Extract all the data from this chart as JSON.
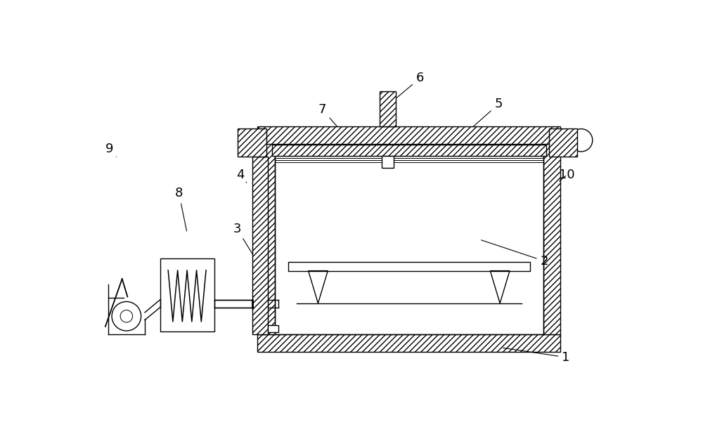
{
  "bg_color": "#ffffff",
  "line_color": "#000000",
  "fig_width": 10.0,
  "fig_height": 6.08,
  "lw": 1.0
}
